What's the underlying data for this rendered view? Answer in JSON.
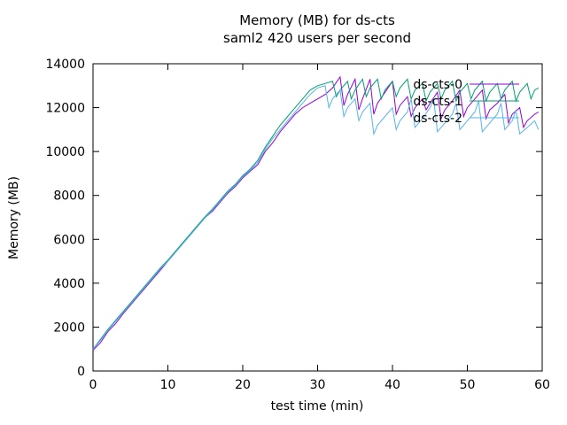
{
  "chart_data": {
    "type": "line",
    "title": "Memory (MB) for ds-cts",
    "subtitle": "saml2 420 users per second",
    "xlabel": "test time (min)",
    "ylabel": "Memory (MB)",
    "xlim": [
      0,
      60
    ],
    "ylim": [
      0,
      14000
    ],
    "xticks": [
      0,
      10,
      20,
      30,
      40,
      50,
      60
    ],
    "yticks": [
      0,
      2000,
      4000,
      6000,
      8000,
      10000,
      12000,
      14000
    ],
    "grid": false,
    "legend_position": "top-right",
    "series": [
      {
        "name": "ds-cts-0",
        "color": "#9400d3",
        "points": [
          [
            0,
            950
          ],
          [
            1,
            1300
          ],
          [
            2,
            1800
          ],
          [
            3,
            2150
          ],
          [
            4,
            2600
          ],
          [
            5,
            3000
          ],
          [
            6,
            3400
          ],
          [
            7,
            3800
          ],
          [
            8,
            4200
          ],
          [
            9,
            4600
          ],
          [
            10,
            5000
          ],
          [
            11,
            5400
          ],
          [
            12,
            5800
          ],
          [
            13,
            6200
          ],
          [
            14,
            6600
          ],
          [
            15,
            7000
          ],
          [
            16,
            7300
          ],
          [
            17,
            7700
          ],
          [
            18,
            8100
          ],
          [
            19,
            8400
          ],
          [
            20,
            8800
          ],
          [
            21,
            9100
          ],
          [
            22,
            9400
          ],
          [
            23,
            10000
          ],
          [
            24,
            10400
          ],
          [
            25,
            10900
          ],
          [
            26,
            11300
          ],
          [
            27,
            11700
          ],
          [
            28,
            12000
          ],
          [
            29,
            12200
          ],
          [
            30,
            12400
          ],
          [
            31,
            12600
          ],
          [
            32,
            12900
          ],
          [
            33,
            13400
          ],
          [
            33.5,
            12100
          ],
          [
            34,
            12600
          ],
          [
            35,
            13300
          ],
          [
            35.5,
            11900
          ],
          [
            36,
            12400
          ],
          [
            37,
            13300
          ],
          [
            37.5,
            11700
          ],
          [
            38,
            12200
          ],
          [
            39,
            12700
          ],
          [
            40,
            13200
          ],
          [
            40.5,
            11700
          ],
          [
            41,
            12100
          ],
          [
            42,
            12500
          ],
          [
            42.5,
            11600
          ],
          [
            43,
            12000
          ],
          [
            44,
            12400
          ],
          [
            44.5,
            11900
          ],
          [
            45,
            12200
          ],
          [
            46,
            12700
          ],
          [
            46.5,
            11500
          ],
          [
            47,
            11900
          ],
          [
            48,
            12300
          ],
          [
            49,
            12800
          ],
          [
            49.5,
            11600
          ],
          [
            50,
            12000
          ],
          [
            51,
            12400
          ],
          [
            52,
            12800
          ],
          [
            52.5,
            11500
          ],
          [
            53,
            11900
          ],
          [
            54,
            12200
          ],
          [
            55,
            12600
          ],
          [
            55.5,
            11300
          ],
          [
            56,
            11700
          ],
          [
            57,
            12000
          ],
          [
            57.5,
            11100
          ],
          [
            58,
            11400
          ],
          [
            59,
            11700
          ],
          [
            59.5,
            11800
          ]
        ]
      },
      {
        "name": "ds-cts-1",
        "color": "#009e73",
        "points": [
          [
            0,
            1000
          ],
          [
            1,
            1450
          ],
          [
            2,
            1900
          ],
          [
            3,
            2300
          ],
          [
            4,
            2700
          ],
          [
            5,
            3100
          ],
          [
            6,
            3500
          ],
          [
            7,
            3900
          ],
          [
            8,
            4300
          ],
          [
            9,
            4700
          ],
          [
            10,
            5050
          ],
          [
            11,
            5450
          ],
          [
            12,
            5850
          ],
          [
            13,
            6250
          ],
          [
            14,
            6650
          ],
          [
            15,
            7050
          ],
          [
            16,
            7400
          ],
          [
            17,
            7800
          ],
          [
            18,
            8200
          ],
          [
            19,
            8500
          ],
          [
            20,
            8900
          ],
          [
            21,
            9200
          ],
          [
            22,
            9600
          ],
          [
            23,
            10200
          ],
          [
            24,
            10700
          ],
          [
            25,
            11200
          ],
          [
            26,
            11600
          ],
          [
            27,
            12000
          ],
          [
            28,
            12400
          ],
          [
            29,
            12800
          ],
          [
            30,
            13000
          ],
          [
            31,
            13100
          ],
          [
            32,
            13200
          ],
          [
            32.5,
            12500
          ],
          [
            33,
            12800
          ],
          [
            34,
            13200
          ],
          [
            34.5,
            12400
          ],
          [
            35,
            12800
          ],
          [
            36,
            13300
          ],
          [
            36.5,
            12500
          ],
          [
            37,
            12900
          ],
          [
            38,
            13300
          ],
          [
            38.5,
            12400
          ],
          [
            39,
            12800
          ],
          [
            40,
            13200
          ],
          [
            40.5,
            12500
          ],
          [
            41,
            12900
          ],
          [
            42,
            13300
          ],
          [
            42.5,
            12400
          ],
          [
            43,
            12800
          ],
          [
            44,
            13100
          ],
          [
            44.5,
            12300
          ],
          [
            45,
            12700
          ],
          [
            46,
            13100
          ],
          [
            46.5,
            12400
          ],
          [
            47,
            12800
          ],
          [
            48,
            13200
          ],
          [
            48.5,
            12300
          ],
          [
            49,
            12700
          ],
          [
            50,
            13100
          ],
          [
            50.5,
            12400
          ],
          [
            51,
            12800
          ],
          [
            52,
            13200
          ],
          [
            52.5,
            12300
          ],
          [
            53,
            12700
          ],
          [
            54,
            13100
          ],
          [
            54.5,
            12400
          ],
          [
            55,
            12800
          ],
          [
            56,
            13200
          ],
          [
            56.5,
            12300
          ],
          [
            57,
            12700
          ],
          [
            58,
            13100
          ],
          [
            58.5,
            12400
          ],
          [
            59,
            12800
          ],
          [
            59.5,
            12900
          ]
        ]
      },
      {
        "name": "ds-cts-2",
        "color": "#56b4e9",
        "points": [
          [
            0,
            1000
          ],
          [
            1,
            1400
          ],
          [
            2,
            1850
          ],
          [
            3,
            2250
          ],
          [
            4,
            2650
          ],
          [
            5,
            3050
          ],
          [
            6,
            3450
          ],
          [
            7,
            3850
          ],
          [
            8,
            4250
          ],
          [
            9,
            4650
          ],
          [
            10,
            5000
          ],
          [
            11,
            5400
          ],
          [
            12,
            5800
          ],
          [
            13,
            6200
          ],
          [
            14,
            6600
          ],
          [
            15,
            7000
          ],
          [
            16,
            7350
          ],
          [
            17,
            7750
          ],
          [
            18,
            8150
          ],
          [
            19,
            8450
          ],
          [
            20,
            8850
          ],
          [
            21,
            9150
          ],
          [
            22,
            9500
          ],
          [
            23,
            10100
          ],
          [
            24,
            10600
          ],
          [
            25,
            11000
          ],
          [
            26,
            11400
          ],
          [
            27,
            11800
          ],
          [
            28,
            12200
          ],
          [
            29,
            12600
          ],
          [
            30,
            12900
          ],
          [
            31,
            13000
          ],
          [
            31.5,
            12000
          ],
          [
            32,
            12400
          ],
          [
            33,
            12800
          ],
          [
            33.5,
            11600
          ],
          [
            34,
            12000
          ],
          [
            35,
            12400
          ],
          [
            35.5,
            11400
          ],
          [
            36,
            11800
          ],
          [
            37,
            12200
          ],
          [
            37.5,
            10800
          ],
          [
            38,
            11200
          ],
          [
            39,
            11600
          ],
          [
            40,
            12000
          ],
          [
            40.5,
            11000
          ],
          [
            41,
            11400
          ],
          [
            42,
            11800
          ],
          [
            42.5,
            12400
          ],
          [
            43,
            11100
          ],
          [
            44,
            11500
          ],
          [
            45,
            12000
          ],
          [
            45.5,
            12400
          ],
          [
            46,
            10900
          ],
          [
            47,
            11300
          ],
          [
            48,
            11700
          ],
          [
            48.5,
            12200
          ],
          [
            49,
            11000
          ],
          [
            50,
            11400
          ],
          [
            51,
            11800
          ],
          [
            51.5,
            12300
          ],
          [
            52,
            10900
          ],
          [
            53,
            11300
          ],
          [
            54,
            11700
          ],
          [
            54.5,
            12200
          ],
          [
            55,
            11000
          ],
          [
            56,
            11400
          ],
          [
            56.5,
            11900
          ],
          [
            57,
            10800
          ],
          [
            58,
            11100
          ],
          [
            59,
            11400
          ],
          [
            59.5,
            11000
          ]
        ]
      }
    ]
  }
}
